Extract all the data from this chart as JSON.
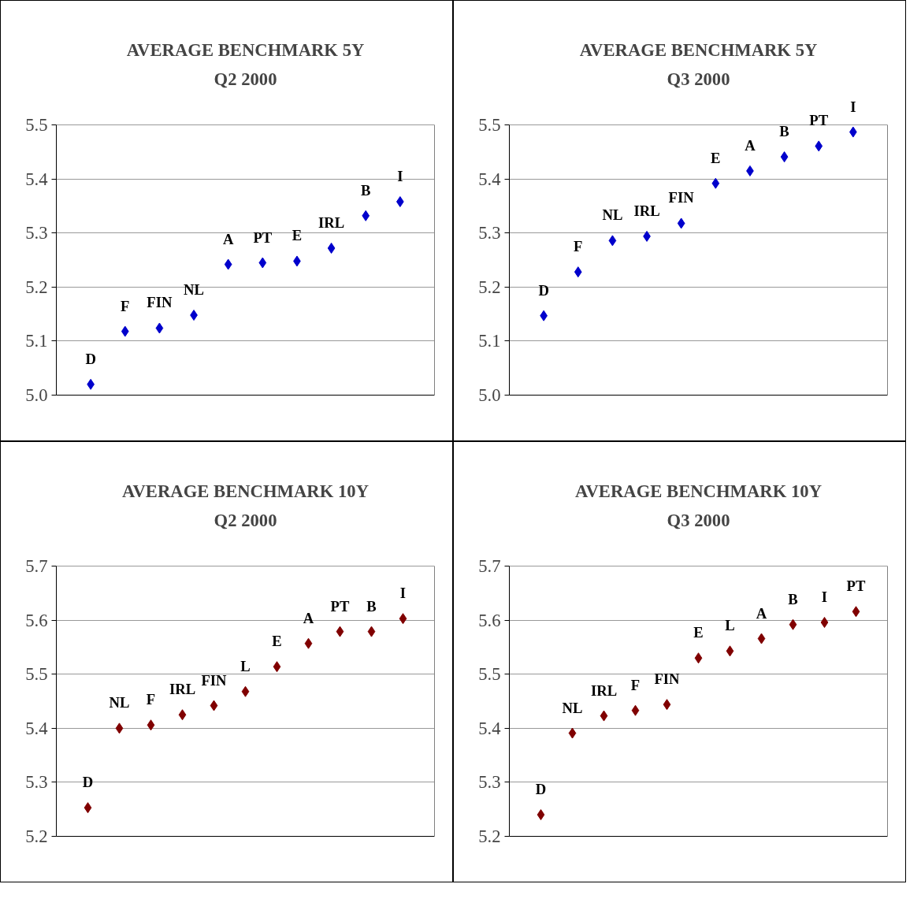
{
  "chart_data": [
    {
      "type": "scatter",
      "title": "AVERAGE BENCHMARK 5Y",
      "subtitle": "Q2 2000",
      "categories": [
        "D",
        "F",
        "FIN",
        "NL",
        "A",
        "PT",
        "E",
        "IRL",
        "B",
        "I"
      ],
      "series": [
        {
          "color": "#0000cc",
          "values": [
            5.02,
            5.118,
            5.124,
            5.148,
            5.242,
            5.245,
            5.248,
            5.272,
            5.332,
            5.358
          ]
        }
      ],
      "ylim": [
        5.0,
        5.5
      ],
      "yticks": [
        {
          "value": 5.0,
          "label": "5.0"
        },
        5.1,
        5.2,
        5.3,
        5.4,
        5.5
      ],
      "grid": "y",
      "marker": "diamond",
      "tick_labels": "y"
    },
    {
      "type": "scatter",
      "title": "AVERAGE BENCHMARK 5Y",
      "subtitle": "Q3 2000",
      "categories": [
        "D",
        "F",
        "NL",
        "IRL",
        "FIN",
        "E",
        "A",
        "B",
        "PT",
        "I"
      ],
      "series": [
        {
          "color": "#0000cc",
          "values": [
            5.147,
            5.228,
            5.286,
            5.294,
            5.318,
            5.392,
            5.415,
            5.441,
            5.461,
            5.487
          ]
        }
      ],
      "ylim": [
        5.0,
        5.5
      ],
      "yticks": [
        {
          "value": 5.0,
          "label": "5.0"
        },
        5.1,
        5.2,
        5.3,
        5.4,
        5.5
      ],
      "grid": "y",
      "marker": "diamond",
      "tick_labels": "y"
    },
    {
      "type": "scatter",
      "title": "AVERAGE BENCHMARK 10Y",
      "subtitle": "Q2 2000",
      "categories": [
        "D",
        "NL",
        "F",
        "IRL",
        "FIN",
        "L",
        "E",
        "A",
        "PT",
        "B",
        "I"
      ],
      "series": [
        {
          "color": "#800000",
          "values": [
            5.253,
            5.4,
            5.406,
            5.425,
            5.442,
            5.468,
            5.514,
            5.557,
            5.579,
            5.579,
            5.603
          ]
        }
      ],
      "ylim": [
        5.2,
        5.7
      ],
      "yticks": [
        5.2,
        5.3,
        5.4,
        5.5,
        5.6,
        5.7
      ],
      "grid": "y",
      "marker": "diamond",
      "tick_labels": "y"
    },
    {
      "type": "scatter",
      "title": "AVERAGE BENCHMARK 10Y",
      "subtitle": "Q3 2000",
      "categories": [
        "D",
        "NL",
        "IRL",
        "F",
        "FIN",
        "E",
        "L",
        "A",
        "B",
        "I",
        "PT"
      ],
      "series": [
        {
          "color": "#800000",
          "values": [
            5.24,
            5.391,
            5.423,
            5.433,
            5.444,
            5.53,
            5.543,
            5.566,
            5.592,
            5.596,
            5.616
          ]
        }
      ],
      "ylim": [
        5.2,
        5.7
      ],
      "yticks": [
        5.2,
        5.3,
        5.4,
        5.5,
        5.6,
        5.7
      ],
      "grid": "y",
      "marker": "diamond",
      "tick_labels": "y"
    }
  ]
}
